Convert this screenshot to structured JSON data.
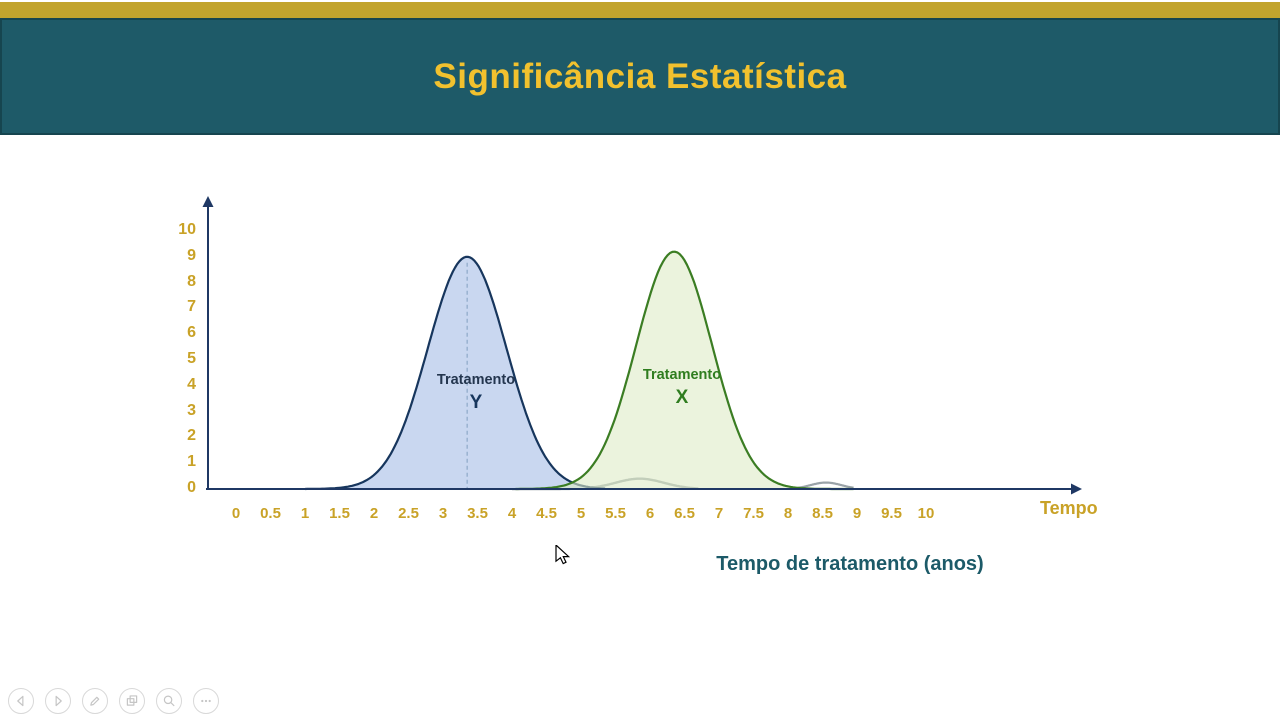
{
  "header": {
    "title": "Significância Estatística"
  },
  "colors": {
    "slide_bg": "#FFFFFF",
    "top_strip": "#C2A42D",
    "header_bg": "#1E5A68",
    "header_border": "#16454F",
    "title_text": "#F2C12E",
    "axis": "#1F3864",
    "tick_text": "#C9A227",
    "caption_text": "#1C5A68"
  },
  "chart_data": {
    "type": "area",
    "title": "",
    "x_ticks": [
      "0",
      "0.5",
      "1",
      "1.5",
      "2",
      "2.5",
      "3",
      "3.5",
      "4",
      "4.5",
      "5",
      "5.5",
      "6",
      "6.5",
      "7",
      "7.5",
      "8",
      "8.5",
      "9",
      "9.5",
      "10"
    ],
    "y_ticks": [
      "10",
      "9",
      "8",
      "7",
      "6",
      "5",
      "4",
      "3",
      "2",
      "1",
      "0"
    ],
    "xlim": [
      0,
      10
    ],
    "ylim": [
      0,
      10
    ],
    "x_axis_end_label": "Tempo",
    "x_axis_caption": "Tempo de tratamento (anos)",
    "series": [
      {
        "id": "overlap-tail-left",
        "mean": 5.85,
        "sd": 0.35,
        "peak": 0.4,
        "from": 4.0,
        "to": 6.7,
        "stroke": "#9AA3A8",
        "stroke_width": 2.4,
        "fill": "none"
      },
      {
        "id": "overlap-tail-right",
        "mean": 8.55,
        "sd": 0.22,
        "peak": 0.25,
        "from": 8.15,
        "to": 8.95,
        "stroke": "#9AA3A8",
        "stroke_width": 2.2,
        "fill": "none"
      },
      {
        "id": "tratamento-y",
        "label": "Tratamento",
        "letter": "Y",
        "label_color": "#24364F",
        "letter_color": "#17365D",
        "mean": 3.35,
        "sd": 0.57,
        "peak": 9.0,
        "from": 1.0,
        "to": 5.35,
        "stroke": "#17365D",
        "stroke_width": 2.2,
        "fill": "#C9D7F0",
        "mean_line": true,
        "mean_line_color": "#8EA9C8"
      },
      {
        "id": "tratamento-x",
        "label": "Tratamento",
        "letter": "X",
        "label_color": "#2F7D1F",
        "letter_color": "#2F7D1F",
        "mean": 6.35,
        "sd": 0.55,
        "peak": 9.2,
        "from": 4.05,
        "to": 8.95,
        "stroke": "#3B7D23",
        "stroke_width": 2.2,
        "fill": "rgba(222,235,198,0.6)"
      }
    ]
  },
  "toolbar": {
    "buttons": [
      {
        "icon": "chevron-left-icon"
      },
      {
        "icon": "chevron-right-icon"
      },
      {
        "icon": "pen-icon"
      },
      {
        "icon": "slides-icon"
      },
      {
        "icon": "magnifier-icon"
      },
      {
        "icon": "ellipsis-icon"
      }
    ]
  }
}
